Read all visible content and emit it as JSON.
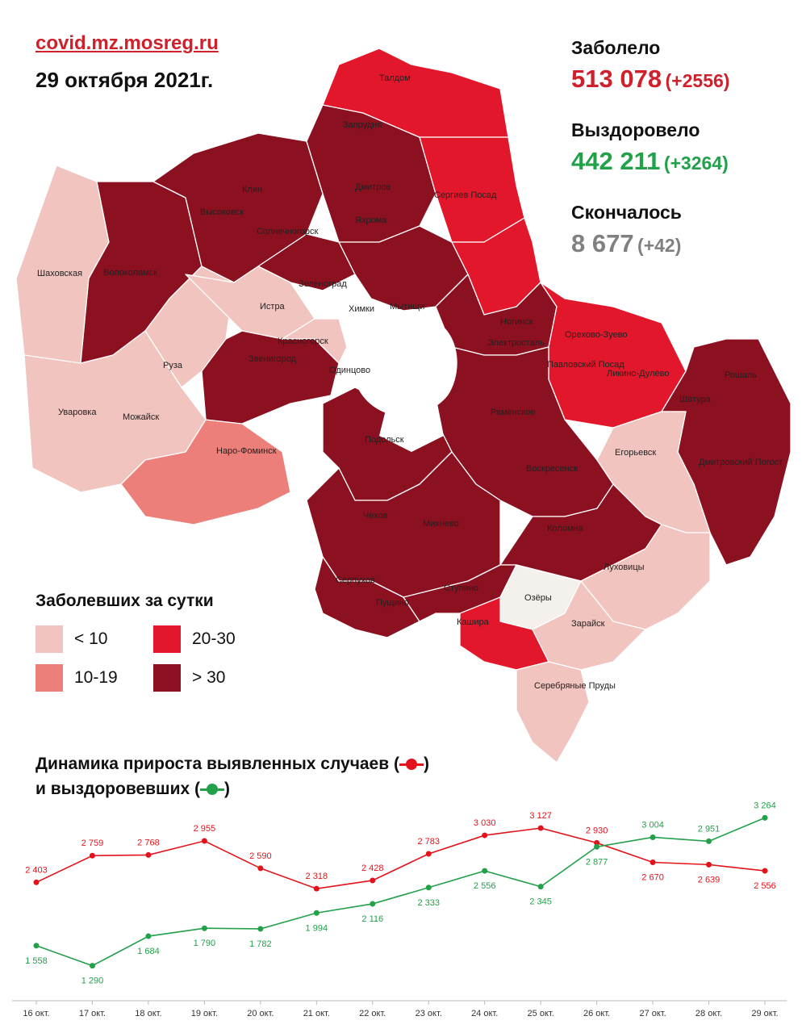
{
  "header": {
    "site": "covid.mz.mosreg.ru",
    "date": "29 октября 2021г."
  },
  "stats": {
    "cases_label": "Заболело",
    "cases_total": "513 078",
    "cases_delta": "(+2556)",
    "recovered_label": "Выздоровело",
    "recovered_total": "442 211",
    "recovered_delta": "(+3264)",
    "deaths_label": "Скончалось",
    "deaths_total": "8 677",
    "deaths_delta": "(+42)"
  },
  "colors": {
    "lt10": "#f1c4bf",
    "c10_19": "#ec7f7a",
    "c20_30": "#e3172b",
    "gt30": "#8b1020",
    "recovered": "#22a04a",
    "cases": "#e3131b"
  },
  "map": {
    "labels": [
      "Талдом",
      "Запрудня",
      "Дмитров",
      "Клин",
      "Высоковск",
      "Яхрома",
      "Солнечногорск",
      "Сергиев Посад",
      "Шаховская",
      "Волоколамск",
      "Зеленоград",
      "Истра",
      "Химки",
      "Мытищи",
      "Ногинск",
      "Электросталь",
      "Красногорск",
      "Звенигород",
      "Одинцово",
      "Орехово-Зуево",
      "Павловский Посад",
      "Ликино-Дулёво",
      "Рошаль",
      "Руза",
      "Можайск",
      "Уваровка",
      "Раменское",
      "Наро-Фоминск",
      "Подольск",
      "Шатура",
      "Егорьевск",
      "Дмитровский Погост",
      "Воскресенск",
      "Чехов",
      "Михнево",
      "Коломна",
      "Луховицы",
      "Серпухов",
      "Пущино",
      "Ступино",
      "Озёры",
      "Зарайск",
      "Кашира",
      "Серебряные Пруды"
    ]
  },
  "legend": {
    "title": "Заболевших за сутки",
    "lt10": "< 10",
    "c10_19": "10-19",
    "c20_30": "20-30",
    "gt30": "> 30"
  },
  "dynamics": {
    "title_line1_prefix": "Динамика прироста выявленных случаев (",
    "title_line2_prefix": "и выздоровевших (",
    "paren_close": ")"
  },
  "chart_data": {
    "type": "line",
    "categories": [
      "16 окт.",
      "17 окт.",
      "18 окт.",
      "19 окт.",
      "20 окт.",
      "21 окт.",
      "22 окт.",
      "23 окт.",
      "24 окт.",
      "25 окт.",
      "26 окт.",
      "27 окт.",
      "28 окт.",
      "29 окт."
    ],
    "series": [
      {
        "key": "cases",
        "values": [
          2403,
          2759,
          2768,
          2955,
          2590,
          2318,
          2428,
          2783,
          3030,
          3127,
          2930,
          2670,
          2639,
          2556
        ],
        "labels": [
          "2 403",
          "2 759",
          "2 768",
          "2 955",
          "2 590",
          "2 318",
          "2 428",
          "2 783",
          "3 030",
          "3 127",
          "2 930",
          "2 670",
          "2 639",
          "2 556"
        ]
      },
      {
        "key": "recovered",
        "values": [
          1558,
          1290,
          1684,
          1790,
          1782,
          1994,
          2116,
          2333,
          2556,
          2345,
          2877,
          3004,
          2951,
          3264
        ],
        "labels": [
          "1 558",
          "1 290",
          "1 684",
          "1 790",
          "1 782",
          "1 994",
          "2 116",
          "2 333",
          "2 556",
          "2 345",
          "2 877",
          "3 004",
          "2 951",
          "3 264"
        ]
      }
    ]
  }
}
